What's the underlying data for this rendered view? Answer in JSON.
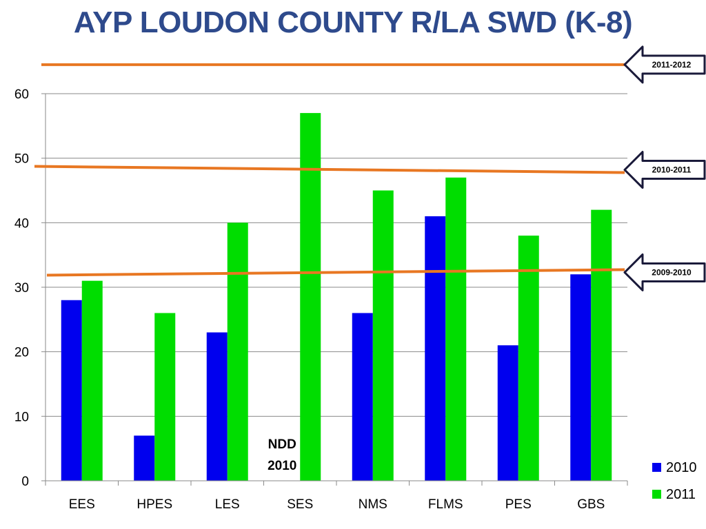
{
  "title": "AYP LOUDON COUNTY R/LA SWD (K-8)",
  "chart_data": {
    "type": "bar",
    "categories": [
      "EES",
      "HPES",
      "LES",
      "SES",
      "NMS",
      "FLMS",
      "PES",
      "GBS"
    ],
    "series": [
      {
        "name": "2010",
        "color": "#0000ee",
        "values": [
          28,
          7,
          23,
          null,
          26,
          41,
          21,
          32
        ]
      },
      {
        "name": "2011",
        "color": "#00dd00",
        "values": [
          31,
          26,
          40,
          57,
          45,
          47,
          38,
          42
        ]
      }
    ],
    "ylim": [
      0,
      60
    ],
    "yticks": [
      0,
      10,
      20,
      30,
      40,
      50,
      60
    ],
    "grid": true,
    "legend_position": "bottom-right",
    "annotation": {
      "line1": "NDD",
      "line2": "2010",
      "category": "SES"
    },
    "target_lines": [
      {
        "label": "2011-2012",
        "value": 64.5,
        "color": "#e87722"
      },
      {
        "label": "2010-2011",
        "value": 48.2,
        "color": "#e87722"
      },
      {
        "label": "2009-2010",
        "value": 32.3,
        "color": "#e87722"
      }
    ]
  }
}
